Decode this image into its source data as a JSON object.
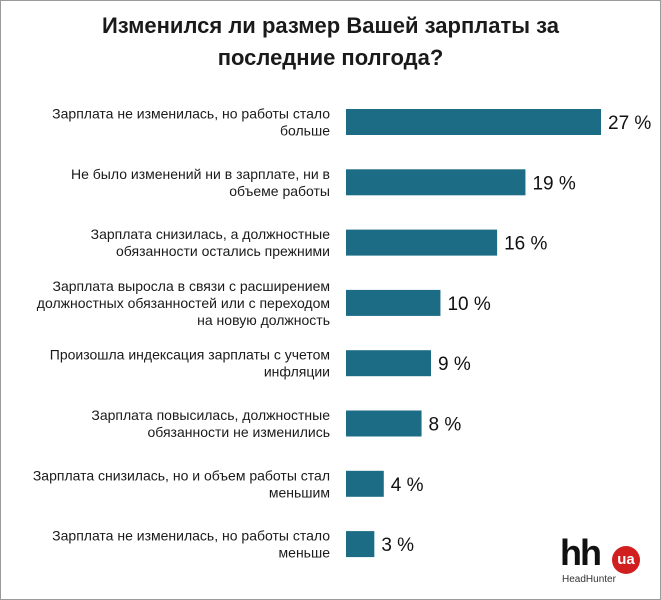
{
  "title": {
    "line1": "Изменился ли размер Вашей зарплаты за",
    "line2": "последние полгода?"
  },
  "logo": {
    "mark": "hh",
    "badge": "ua",
    "sub": "HeadHunter"
  },
  "colors": {
    "bar": "#1c6c86"
  },
  "chart_data": {
    "type": "bar",
    "orientation": "horizontal",
    "title": "Изменился ли размер Вашей зарплаты за последние полгода?",
    "unit": "%",
    "categories": [
      [
        "Зарплата не изменилась, но работы стало",
        "больше"
      ],
      [
        "Не было изменений ни в зарплате, ни в",
        "объеме работы"
      ],
      [
        "Зарплата снизилась, а должностные",
        "обязанности остались прежними"
      ],
      [
        "Зарплата выросла в связи с расширением",
        "должностных обязанностей или с переходом",
        "на новую должность"
      ],
      [
        "Произошла индексация зарплаты с учетом",
        "инфляции"
      ],
      [
        "Зарплата повысилась, должностные",
        "обязанности не изменились"
      ],
      [
        "Зарплата снизилась, но и объем работы стал",
        "меньшим"
      ],
      [
        "Зарплата не изменилась, но работы стало",
        "меньше"
      ]
    ],
    "values": [
      27,
      19,
      16,
      10,
      9,
      8,
      4,
      3
    ],
    "value_labels": [
      "27 %",
      "19 %",
      "16 %",
      "10 %",
      "9 %",
      "8 %",
      "4 %",
      "3 %"
    ],
    "xlim": [
      0,
      27
    ],
    "grid": false,
    "legend": "none"
  }
}
